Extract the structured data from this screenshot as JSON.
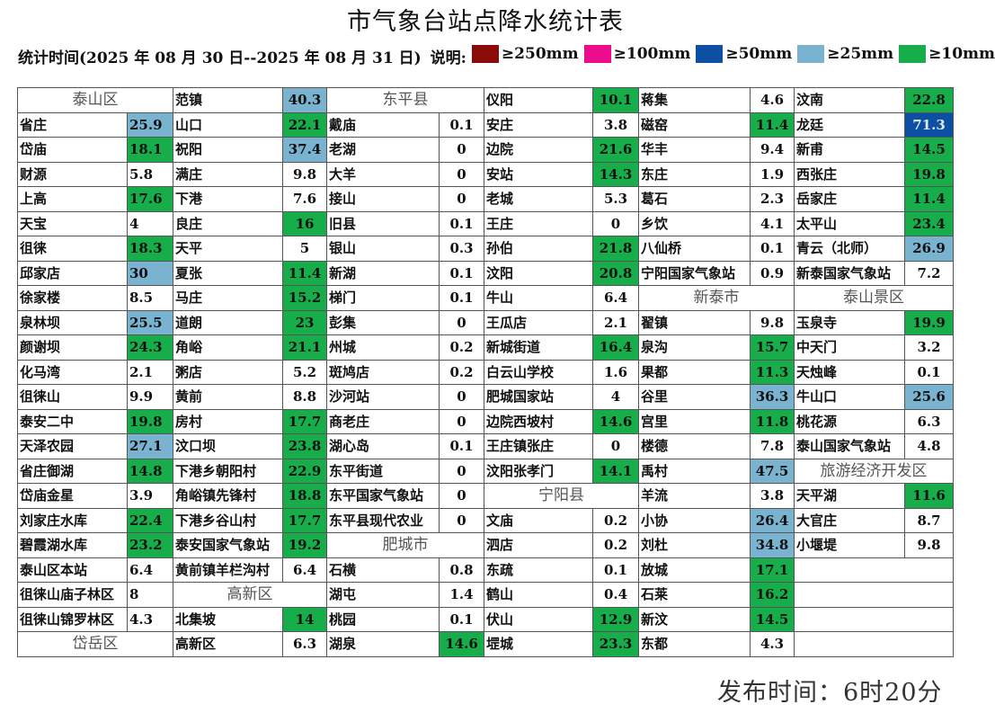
{
  "title": "市气象台站点降水统计表",
  "stat_period": "统计时间(2025 年 08 月 30 日--2025 年 08 月 31 日)",
  "legend_label": "说明:",
  "legend": [
    {
      "label": "≥250mm",
      "color": "#8b0a0a"
    },
    {
      "label": "≥100mm",
      "color": "#ec0c8c"
    },
    {
      "label": "≥50mm",
      "color": "#0d4fa3"
    },
    {
      "label": "≥25mm",
      "color": "#7ab3cf"
    },
    {
      "label": "≥10mm",
      "color": "#17ad4b"
    }
  ],
  "level_colors": {
    "b50": "#0d4fa3",
    "b25": "#7ab3cf",
    "g10": "#17ad4b"
  },
  "table": {
    "rows": [
      {
        "cells": [
          {
            "header": "泰山区"
          },
          {
            "name": "范镇",
            "value": "40.3",
            "level": "b25"
          },
          {
            "header": "东平县"
          },
          {
            "name": "仪阳",
            "value": "10.1",
            "level": "g10"
          },
          {
            "name": "蒋集",
            "value": "4.6"
          },
          {
            "name": "汶南",
            "value": "22.8",
            "level": "g10"
          }
        ]
      },
      {
        "cells": [
          {
            "name": "省庄",
            "value": "25.9",
            "level": "b25"
          },
          {
            "name": "山口",
            "value": "22.1",
            "level": "g10"
          },
          {
            "name": "戴庙",
            "value": "0.1"
          },
          {
            "name": "安庄",
            "value": "3.8"
          },
          {
            "name": "磁窑",
            "value": "11.4",
            "level": "g10"
          },
          {
            "name": "龙廷",
            "value": "71.3",
            "level": "b50"
          }
        ]
      },
      {
        "cells": [
          {
            "name": "岱庙",
            "value": "18.1",
            "level": "g10"
          },
          {
            "name": "祝阳",
            "value": "37.4",
            "level": "b25"
          },
          {
            "name": "老湖",
            "value": "0"
          },
          {
            "name": "边院",
            "value": "21.6",
            "level": "g10"
          },
          {
            "name": "华丰",
            "value": "9.4"
          },
          {
            "name": "新甫",
            "value": "14.5",
            "level": "g10"
          }
        ]
      },
      {
        "cells": [
          {
            "name": "财源",
            "value": "5.8"
          },
          {
            "name": "满庄",
            "value": "9.8"
          },
          {
            "name": "大羊",
            "value": "0"
          },
          {
            "name": "安站",
            "value": "14.3",
            "level": "g10"
          },
          {
            "name": "东庄",
            "value": "1.9"
          },
          {
            "name": "西张庄",
            "value": "19.8",
            "level": "g10"
          }
        ]
      },
      {
        "cells": [
          {
            "name": "上高",
            "value": "17.6",
            "level": "g10"
          },
          {
            "name": "下港",
            "value": "7.6"
          },
          {
            "name": "接山",
            "value": "0"
          },
          {
            "name": "老城",
            "value": "5.3"
          },
          {
            "name": "葛石",
            "value": "2.3"
          },
          {
            "name": "岳家庄",
            "value": "11.4",
            "level": "g10"
          }
        ]
      },
      {
        "cells": [
          {
            "name": "天宝",
            "value": "4"
          },
          {
            "name": "良庄",
            "value": "16",
            "level": "g10"
          },
          {
            "name": "旧县",
            "value": "0.1"
          },
          {
            "name": "王庄",
            "value": "0"
          },
          {
            "name": "乡饮",
            "value": "4.1"
          },
          {
            "name": "太平山",
            "value": "23.4",
            "level": "g10"
          }
        ]
      },
      {
        "cells": [
          {
            "name": "徂徕",
            "value": "18.3",
            "level": "g10"
          },
          {
            "name": "天平",
            "value": "5"
          },
          {
            "name": "银山",
            "value": "0.3"
          },
          {
            "name": "孙伯",
            "value": "21.8",
            "level": "g10"
          },
          {
            "name": "八仙桥",
            "value": "0.1"
          },
          {
            "name": "青云（北师）",
            "value": "26.9",
            "level": "b25"
          }
        ]
      },
      {
        "cells": [
          {
            "name": "邱家店",
            "value": "30",
            "level": "b25"
          },
          {
            "name": "夏张",
            "value": "11.4",
            "level": "g10"
          },
          {
            "name": "新湖",
            "value": "0.1"
          },
          {
            "name": "汶阳",
            "value": "20.8",
            "level": "g10"
          },
          {
            "name": "宁阳国家气象站",
            "value": "0.9"
          },
          {
            "name": "新泰国家气象站",
            "value": "7.2"
          }
        ]
      },
      {
        "cells": [
          {
            "name": "徐家楼",
            "value": "8.5"
          },
          {
            "name": "马庄",
            "value": "15.2",
            "level": "g10"
          },
          {
            "name": "梯门",
            "value": "0.1"
          },
          {
            "name": "牛山",
            "value": "6.4"
          },
          {
            "header": "新泰市"
          },
          {
            "header": "泰山景区"
          }
        ]
      },
      {
        "cells": [
          {
            "name": "泉林坝",
            "value": "25.5",
            "level": "b25"
          },
          {
            "name": "道朗",
            "value": "23",
            "level": "g10"
          },
          {
            "name": "彭集",
            "value": "0"
          },
          {
            "name": "王瓜店",
            "value": "2.1"
          },
          {
            "name": "翟镇",
            "value": "9.8"
          },
          {
            "name": "玉泉寺",
            "value": "19.9",
            "level": "g10"
          }
        ]
      },
      {
        "cells": [
          {
            "name": "颜谢坝",
            "value": "24.3",
            "level": "g10"
          },
          {
            "name": "角峪",
            "value": "21.1",
            "level": "g10"
          },
          {
            "name": "州城",
            "value": "0.2"
          },
          {
            "name": "新城街道",
            "value": "16.4",
            "level": "g10"
          },
          {
            "name": "泉沟",
            "value": "15.7",
            "level": "g10"
          },
          {
            "name": "中天门",
            "value": "3.2"
          }
        ]
      },
      {
        "cells": [
          {
            "name": "化马湾",
            "value": "2.1"
          },
          {
            "name": "粥店",
            "value": "5.2"
          },
          {
            "name": "斑鸠店",
            "value": "0.2"
          },
          {
            "name": "白云山学校",
            "value": "1.6"
          },
          {
            "name": "果都",
            "value": "11.3",
            "level": "g10"
          },
          {
            "name": "天烛峰",
            "value": "0.1"
          }
        ]
      },
      {
        "cells": [
          {
            "name": "徂徕山",
            "value": "9.9"
          },
          {
            "name": "黄前",
            "value": "8.8"
          },
          {
            "name": "沙河站",
            "value": "0"
          },
          {
            "name": "肥城国家站",
            "value": "4"
          },
          {
            "name": "谷里",
            "value": "36.3",
            "level": "b25"
          },
          {
            "name": "牛山口",
            "value": "25.6",
            "level": "b25"
          }
        ]
      },
      {
        "cells": [
          {
            "name": "泰安二中",
            "value": "19.8",
            "level": "g10"
          },
          {
            "name": "房村",
            "value": "17.7",
            "level": "g10"
          },
          {
            "name": "商老庄",
            "value": "0"
          },
          {
            "name": "边院西坡村",
            "value": "14.6",
            "level": "g10"
          },
          {
            "name": "宫里",
            "value": "11.8",
            "level": "g10"
          },
          {
            "name": "桃花源",
            "value": "6.3"
          }
        ]
      },
      {
        "cells": [
          {
            "name": "天泽农园",
            "value": "27.1",
            "level": "b25"
          },
          {
            "name": "汶口坝",
            "value": "23.8",
            "level": "g10"
          },
          {
            "name": "湖心岛",
            "value": "0.1"
          },
          {
            "name": "王庄镇张庄",
            "value": "0"
          },
          {
            "name": "楼德",
            "value": "7.8"
          },
          {
            "name": "泰山国家气象站",
            "value": "4.8"
          }
        ]
      },
      {
        "cells": [
          {
            "name": "省庄御湖",
            "value": "14.8",
            "level": "g10"
          },
          {
            "name": "下港乡朝阳村",
            "value": "22.9",
            "level": "g10"
          },
          {
            "name": "东平街道",
            "value": "0"
          },
          {
            "name": "汶阳张孝门",
            "value": "14.1",
            "level": "g10"
          },
          {
            "name": "禹村",
            "value": "47.5",
            "level": "b25"
          },
          {
            "header": "旅游经济开发区"
          }
        ]
      },
      {
        "cells": [
          {
            "name": "岱庙金星",
            "value": "3.9"
          },
          {
            "name": "角峪镇先锋村",
            "value": "18.8",
            "level": "g10"
          },
          {
            "name": "东平国家气象站",
            "value": "0"
          },
          {
            "header": "宁阳县"
          },
          {
            "name": "羊流",
            "value": "3.8"
          },
          {
            "name": "天平湖",
            "value": "11.6",
            "level": "g10"
          }
        ]
      },
      {
        "cells": [
          {
            "name": "刘家庄水库",
            "value": "22.4",
            "level": "g10"
          },
          {
            "name": "下港乡谷山村",
            "value": "17.7",
            "level": "g10"
          },
          {
            "name": "东平县现代农业",
            "value": "0"
          },
          {
            "name": "文庙",
            "value": "0.2"
          },
          {
            "name": "小协",
            "value": "26.4",
            "level": "b25"
          },
          {
            "name": "大官庄",
            "value": "8.7"
          }
        ]
      },
      {
        "cells": [
          {
            "name": "碧霞湖水库",
            "value": "23.2",
            "level": "g10"
          },
          {
            "name": "泰安国家气象站",
            "value": "19.2",
            "level": "g10"
          },
          {
            "header": "肥城市"
          },
          {
            "name": "泗店",
            "value": "0.2"
          },
          {
            "name": "刘杜",
            "value": "34.8",
            "level": "b25"
          },
          {
            "name": "小堰堤",
            "value": "9.8"
          }
        ]
      },
      {
        "cells": [
          {
            "name": "泰山区本站",
            "value": "6.4"
          },
          {
            "name": "黄前镇羊栏沟村",
            "value": "6.4"
          },
          {
            "name": "石横",
            "value": "0.8"
          },
          {
            "name": "东疏",
            "value": "0.1"
          },
          {
            "name": "放城",
            "value": "17.1",
            "level": "g10"
          },
          {
            "empty": true
          }
        ]
      },
      {
        "cells": [
          {
            "name": "徂徕山庙子林区",
            "value": "8"
          },
          {
            "header": "高新区"
          },
          {
            "name": "湖屯",
            "value": "1.4"
          },
          {
            "name": "鹤山",
            "value": "0.4"
          },
          {
            "name": "石莱",
            "value": "16.2",
            "level": "g10"
          },
          {
            "empty": true
          }
        ]
      },
      {
        "cells": [
          {
            "name": "徂徕山锦罗林区",
            "value": "4.3"
          },
          {
            "name": "北集坡",
            "value": "14",
            "level": "g10"
          },
          {
            "name": "桃园",
            "value": "0.1"
          },
          {
            "name": "伏山",
            "value": "12.9",
            "level": "g10"
          },
          {
            "name": "新汶",
            "value": "14.5",
            "level": "g10"
          },
          {
            "empty": true
          }
        ]
      },
      {
        "cells": [
          {
            "header": "岱岳区"
          },
          {
            "name": "高新区",
            "value": "6.3"
          },
          {
            "name": "湖泉",
            "value": "14.6",
            "level": "g10"
          },
          {
            "name": "堽城",
            "value": "23.3",
            "level": "g10"
          },
          {
            "name": "东都",
            "value": "4.3"
          },
          {
            "empty": true
          }
        ]
      }
    ]
  },
  "footer": "发布时间：6时20分"
}
